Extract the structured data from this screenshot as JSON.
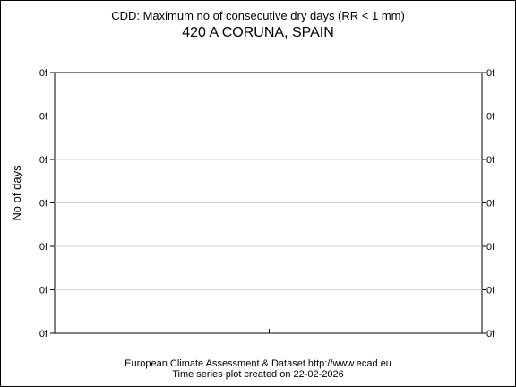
{
  "chart_data": {
    "type": "line",
    "title": "CDD: Maximum no of consecutive dry days (RR < 1 mm)",
    "subtitle": "420 A CORUNA, SPAIN",
    "xlabel": "",
    "ylabel": "No of days",
    "y_tick_labels": [
      "0f",
      "0f",
      "0f",
      "0f",
      "0f",
      "0f",
      "0f"
    ],
    "series": [],
    "grid": true,
    "legend": "none"
  },
  "footer": {
    "line1": "European Climate Assessment & Dataset  http://www.ecad.eu",
    "line2": "Time series plot created on 22-02-2026"
  },
  "colors": {
    "axis": "#000000",
    "grid": "#d3d3d3",
    "background": "#ffffff"
  }
}
